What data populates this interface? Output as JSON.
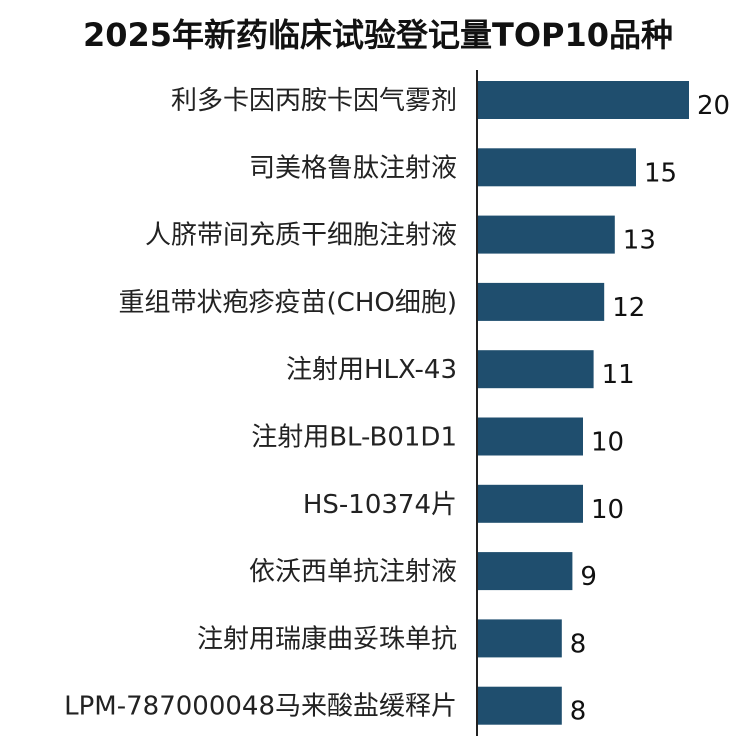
{
  "chart_data": {
    "type": "bar",
    "orientation": "horizontal",
    "title": "2025年新药临床试验登记量TOP10品种",
    "categories": [
      "利多卡因丙胺卡因气雾剂",
      "司美格鲁肽注射液",
      "人脐带间充质干细胞注射液",
      "重组带状疱疹疫苗(CHO细胞)",
      "注射用HLX-43",
      "注射用BL-B01D1",
      "HS-10374片",
      "依沃西单抗注射液",
      "注射用瑞康曲妥珠单抗",
      "LPM-787000048马来酸盐缓释片"
    ],
    "values": [
      20,
      15,
      13,
      12,
      11,
      10,
      10,
      9,
      8,
      8
    ],
    "xlim": [
      0,
      20
    ],
    "grid": false,
    "legend": "none",
    "bar_color": "#1f4e6e"
  }
}
